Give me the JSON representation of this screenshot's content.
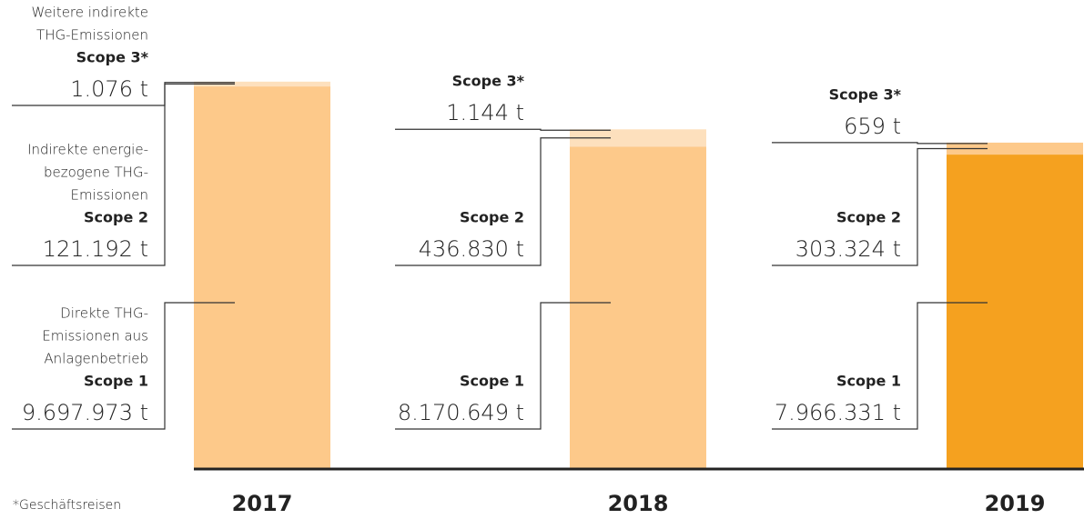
{
  "chart_data": {
    "type": "bar",
    "stacked": true,
    "categories": [
      "2017",
      "2018",
      "2019"
    ],
    "series": [
      {
        "name": "Scope 1",
        "description": [
          "Direkte THG-",
          "Emissionen aus",
          "Anlagenbetrieb"
        ],
        "values": [
          9697973,
          8170649,
          7966331
        ],
        "value_labels": [
          "9.697.973 t",
          "8.170.649 t",
          "7.966.331 t"
        ],
        "colors": [
          "#fdc98a",
          "#fdc98a",
          "#f5a11f"
        ]
      },
      {
        "name": "Scope 2",
        "description": [
          "Indirekte energie-",
          "bezogene THG-",
          "Emissionen"
        ],
        "values": [
          121192,
          436830,
          303324
        ],
        "value_labels": [
          "121.192 t",
          "436.830 t",
          "303.324 t"
        ],
        "colors": [
          "#fde0bd",
          "#fde0bd",
          "#fdc98a"
        ]
      },
      {
        "name": "Scope 3*",
        "description": [
          "Weitere indirekte",
          "THG-Emissionen"
        ],
        "values": [
          1076,
          1144,
          659
        ],
        "value_labels": [
          "1.076 t",
          "1.144 t",
          "659 t"
        ],
        "colors": [
          "#feeedc",
          "#feeedc",
          "#fde0bd"
        ]
      }
    ],
    "ylim": [
      0,
      10000000
    ],
    "footnote": "*Geschäftsreisen"
  }
}
